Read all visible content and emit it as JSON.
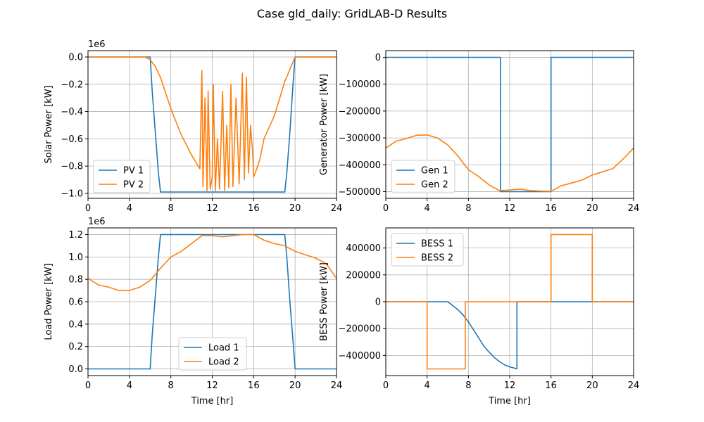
{
  "figure": {
    "title": "Case gld_daily: GridLAB-D Results"
  },
  "colors": {
    "series1": "#1f77b4",
    "series2": "#ff7f0e",
    "grid": "#b0b0b0",
    "frame": "#000000"
  },
  "chart_data": [
    {
      "type": "line",
      "ylabel": "Solar Power [kW]",
      "xlabel": "",
      "xlim": [
        0,
        24
      ],
      "ylim": [
        -1.0366,
        0.0466
      ],
      "xticks": [
        0,
        4,
        8,
        12,
        16,
        20,
        24
      ],
      "yticks": [
        0.0,
        -0.2,
        -0.4,
        -0.6,
        -0.8,
        -1.0
      ],
      "ytick_labels": [
        "0.0",
        "−0.2",
        "−0.4",
        "−0.6",
        "−0.8",
        "−1.0"
      ],
      "offset_text": "1e6",
      "grid": true,
      "legend": "lower left",
      "series": [
        {
          "name": "PV 1",
          "x": [
            0,
            6.0,
            6.2,
            6.5,
            6.8,
            7.0,
            19.0,
            19.2,
            19.5,
            19.8,
            20.0,
            24
          ],
          "y": [
            0,
            0,
            -0.25,
            -0.55,
            -0.85,
            -0.99,
            -0.99,
            -0.85,
            -0.55,
            -0.2,
            0,
            0
          ]
        },
        {
          "name": "PV 2",
          "x": [
            0,
            5.5,
            6.0,
            6.5,
            7.0,
            8.0,
            9.0,
            10.0,
            10.8,
            11.0,
            11.1,
            11.3,
            11.5,
            11.6,
            11.8,
            12.0,
            12.1,
            12.3,
            12.5,
            12.7,
            13.0,
            13.2,
            13.4,
            13.6,
            13.8,
            14.0,
            14.3,
            14.6,
            14.9,
            15.1,
            15.3,
            15.5,
            15.7,
            15.9,
            16.0,
            16.3,
            16.6,
            17.0,
            18.0,
            19.0,
            20.0,
            24
          ],
          "y": [
            0,
            0,
            -0.02,
            -0.07,
            -0.15,
            -0.38,
            -0.57,
            -0.72,
            -0.82,
            -0.1,
            -0.95,
            -0.3,
            -0.98,
            -0.25,
            -0.97,
            -0.88,
            -0.2,
            -0.98,
            -0.6,
            -0.97,
            -0.25,
            -0.98,
            -0.5,
            -0.96,
            -0.2,
            -0.95,
            -0.3,
            -0.93,
            -0.12,
            -0.9,
            -0.15,
            -0.85,
            -0.5,
            -0.7,
            -0.88,
            -0.82,
            -0.75,
            -0.6,
            -0.43,
            -0.18,
            0,
            0
          ]
        }
      ]
    },
    {
      "type": "line",
      "ylabel": "Generator Power [kW]",
      "xlabel": "",
      "xlim": [
        0,
        24
      ],
      "ylim": [
        -525000,
        25000
      ],
      "xticks": [
        0,
        4,
        8,
        12,
        16,
        20,
        24
      ],
      "yticks": [
        0,
        -100000,
        -200000,
        -300000,
        -400000,
        -500000
      ],
      "ytick_labels": [
        "0",
        "−100000",
        "−200000",
        "−300000",
        "−400000",
        "−500000"
      ],
      "grid": true,
      "legend": "lower left",
      "series": [
        {
          "name": "Gen 1",
          "x": [
            0,
            11.1,
            11.1,
            16.0,
            16.0,
            24
          ],
          "y": [
            0,
            0,
            -500000,
            -500000,
            0,
            0
          ]
        },
        {
          "name": "Gen 2",
          "x": [
            0,
            1,
            2,
            3,
            4,
            5,
            6,
            7,
            8,
            9,
            10,
            11,
            12,
            13,
            14,
            15,
            16,
            17,
            18,
            19,
            20,
            21,
            22,
            23,
            24
          ],
          "y": [
            -338000,
            -312000,
            -302000,
            -290000,
            -289000,
            -300000,
            -326000,
            -368000,
            -418000,
            -444000,
            -475000,
            -496000,
            -494000,
            -491000,
            -496000,
            -498000,
            -499000,
            -478000,
            -468000,
            -457000,
            -438000,
            -426000,
            -414000,
            -378000,
            -338000
          ]
        }
      ]
    },
    {
      "type": "line",
      "ylabel": "Load Power [kW]",
      "xlabel": "Time [hr]",
      "xlim": [
        0,
        24
      ],
      "ylim": [
        -0.06,
        1.26
      ],
      "xticks": [
        0,
        4,
        8,
        12,
        16,
        20,
        24
      ],
      "yticks": [
        0.0,
        0.2,
        0.4,
        0.6,
        0.8,
        1.0,
        1.2
      ],
      "ytick_labels": [
        "0.0",
        "0.2",
        "0.4",
        "0.6",
        "0.8",
        "1.0",
        "1.2"
      ],
      "offset_text": "1e6",
      "grid": true,
      "legend": "lower center",
      "series": [
        {
          "name": "Load 1",
          "x": [
            0,
            6.0,
            6.2,
            6.5,
            6.8,
            7.0,
            19.0,
            19.2,
            19.5,
            19.8,
            20.0,
            24
          ],
          "y": [
            0,
            0,
            0.3,
            0.65,
            1.0,
            1.2,
            1.2,
            1.0,
            0.6,
            0.25,
            0,
            0
          ]
        },
        {
          "name": "Load 2",
          "x": [
            0,
            1,
            2,
            3,
            4,
            5,
            6,
            7,
            8,
            9,
            10,
            11,
            12,
            13,
            14,
            15,
            16,
            17,
            18,
            19,
            20,
            21,
            22,
            23,
            24
          ],
          "y": [
            0.81,
            0.75,
            0.73,
            0.7,
            0.7,
            0.73,
            0.79,
            0.9,
            1.0,
            1.05,
            1.12,
            1.19,
            1.19,
            1.18,
            1.19,
            1.2,
            1.2,
            1.15,
            1.12,
            1.1,
            1.05,
            1.02,
            0.99,
            0.94,
            0.81
          ]
        }
      ]
    },
    {
      "type": "line",
      "ylabel": "BESS Power [kW]",
      "xlabel": "Time [hr]",
      "xlim": [
        0,
        24
      ],
      "ylim": [
        -550000,
        550000
      ],
      "xticks": [
        0,
        4,
        8,
        12,
        16,
        20,
        24
      ],
      "yticks": [
        400000,
        200000,
        0,
        -200000,
        -400000
      ],
      "ytick_labels": [
        "400000",
        "200000",
        "0",
        "−200000",
        "−400000"
      ],
      "grid": true,
      "legend": "upper left",
      "series": [
        {
          "name": "BESS 1",
          "x": [
            0,
            6.0,
            6.5,
            7.0,
            7.5,
            8.0,
            8.5,
            9.0,
            9.5,
            10.0,
            10.5,
            11.0,
            11.5,
            12.0,
            12.5,
            12.7,
            12.7,
            24
          ],
          "y": [
            0,
            0,
            -30000,
            -60000,
            -100000,
            -150000,
            -210000,
            -270000,
            -330000,
            -375000,
            -415000,
            -445000,
            -470000,
            -485000,
            -495000,
            -500000,
            0,
            0
          ]
        },
        {
          "name": "BESS 2",
          "x": [
            0,
            4.0,
            4.0,
            7.7,
            7.7,
            16.0,
            16.0,
            20.0,
            20.0,
            24
          ],
          "y": [
            0,
            0,
            -500000,
            -500000,
            0,
            0,
            500000,
            500000,
            0,
            0
          ]
        }
      ]
    }
  ]
}
